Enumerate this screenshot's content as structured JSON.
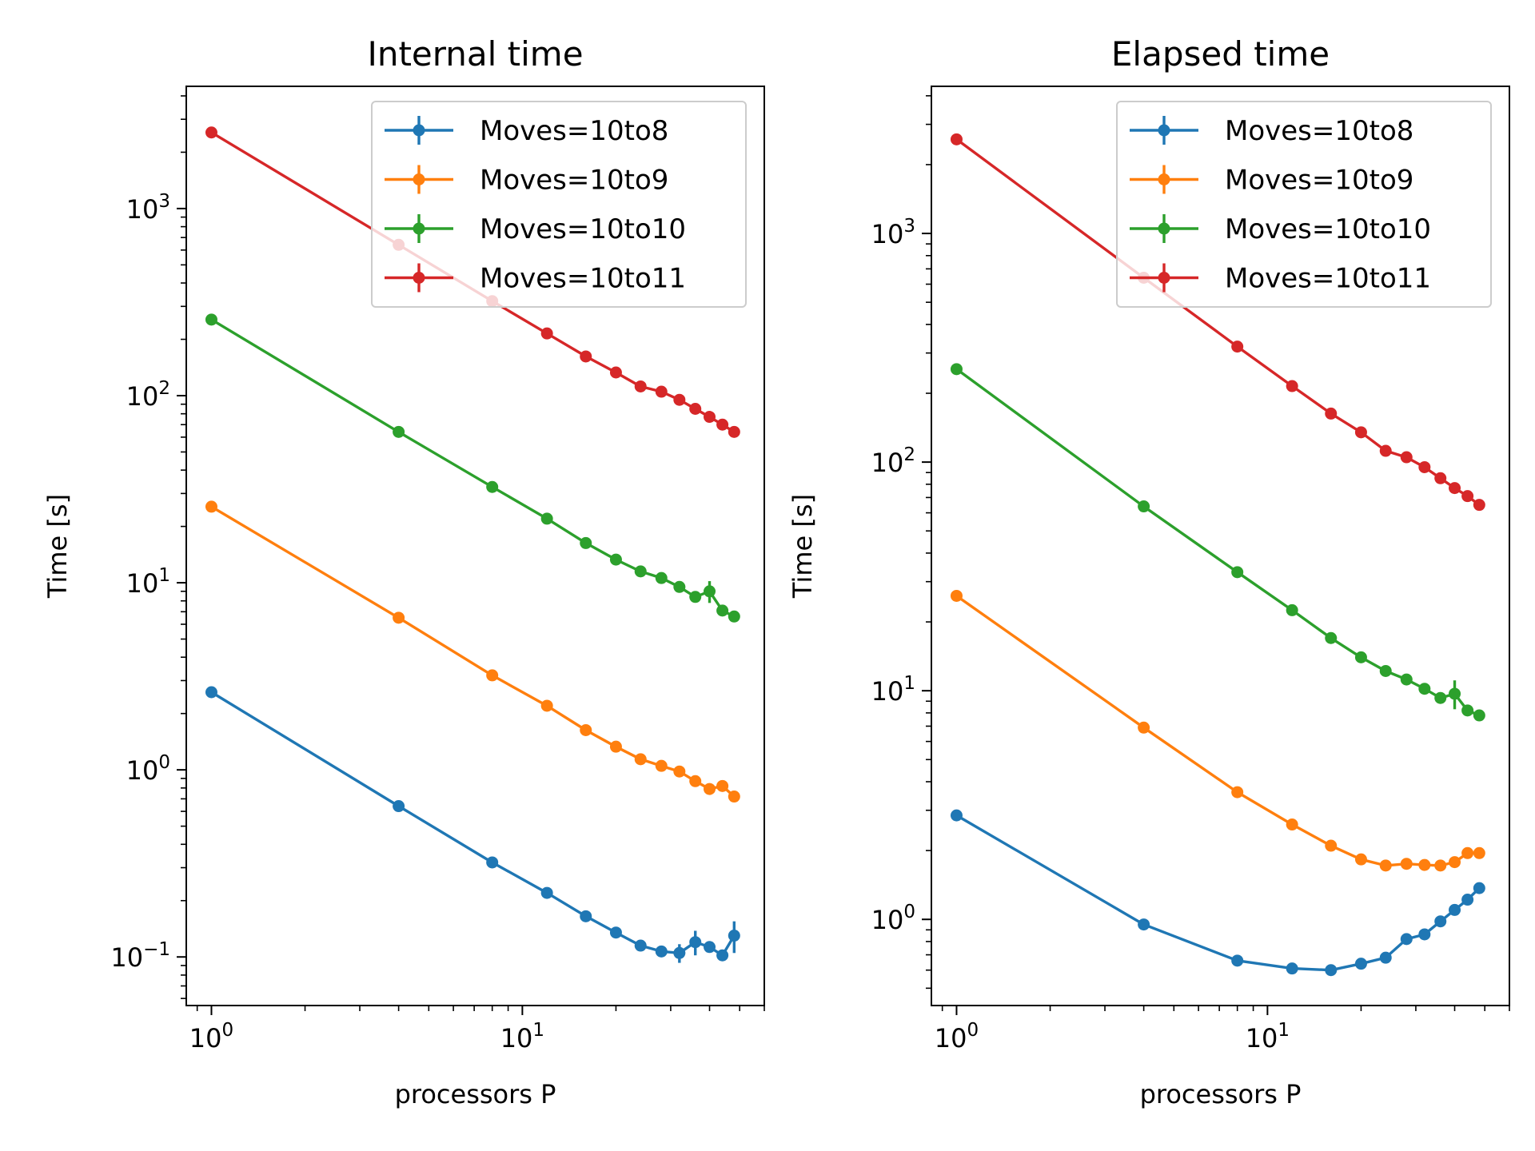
{
  "chart_data": [
    {
      "type": "line",
      "title": "Internal time",
      "xlabel": "processors P",
      "ylabel": "Time [s]",
      "xscale": "log",
      "yscale": "log",
      "xlim": [
        0.83,
        60
      ],
      "ylim": [
        0.055,
        4500
      ],
      "x_ticks": [
        {
          "value": 1,
          "base": "10",
          "exp": "0"
        },
        {
          "value": 10,
          "base": "10",
          "exp": "1"
        }
      ],
      "y_ticks": [
        {
          "value": 0.1,
          "base": "10",
          "exp": "−1"
        },
        {
          "value": 1,
          "base": "10",
          "exp": "0"
        },
        {
          "value": 10,
          "base": "10",
          "exp": "1"
        },
        {
          "value": 100,
          "base": "10",
          "exp": "2"
        },
        {
          "value": 1000,
          "base": "10",
          "exp": "3"
        }
      ],
      "grid": false,
      "legend_position": "top-right",
      "x": [
        1,
        4,
        8,
        12,
        16,
        20,
        24,
        28,
        32,
        36,
        40,
        44,
        48
      ],
      "series": [
        {
          "name": "Moves=10to8",
          "color": "#1f77b4",
          "values": [
            2.6,
            0.64,
            0.32,
            0.22,
            0.165,
            0.135,
            0.115,
            0.107,
            0.105,
            0.12,
            0.113,
            0.102,
            0.13
          ],
          "errors": [
            0,
            0,
            0,
            0,
            0,
            0,
            0,
            0,
            0.012,
            0.018,
            0,
            0,
            0.025
          ]
        },
        {
          "name": "Moves=10to9",
          "color": "#ff7f0e",
          "values": [
            25.5,
            6.5,
            3.2,
            2.2,
            1.63,
            1.33,
            1.14,
            1.05,
            0.98,
            0.87,
            0.79,
            0.82,
            0.72
          ],
          "errors": [
            0,
            0,
            0,
            0,
            0,
            0,
            0,
            0,
            0,
            0,
            0,
            0,
            0
          ]
        },
        {
          "name": "Moves=10to10",
          "color": "#2ca02c",
          "values": [
            255,
            64,
            32.5,
            22,
            16.3,
            13.3,
            11.5,
            10.6,
            9.5,
            8.4,
            9.0,
            7.1,
            6.6
          ],
          "errors": [
            0,
            0,
            0,
            0,
            0,
            0,
            0,
            0,
            0,
            0,
            1.2,
            0,
            0
          ]
        },
        {
          "name": "Moves=10to11",
          "color": "#d62728",
          "values": [
            2550,
            640,
            320,
            215,
            162,
            133,
            112,
            105,
            95,
            85,
            77,
            70,
            64
          ],
          "errors": [
            0,
            0,
            0,
            0,
            0,
            0,
            0,
            0,
            0,
            0,
            0,
            0,
            0
          ]
        }
      ]
    },
    {
      "type": "line",
      "title": "Elapsed time",
      "xlabel": "processors P",
      "ylabel": "Time [s]",
      "xscale": "log",
      "yscale": "log",
      "xlim": [
        0.83,
        60
      ],
      "ylim": [
        0.42,
        4400
      ],
      "x_ticks": [
        {
          "value": 1,
          "base": "10",
          "exp": "0"
        },
        {
          "value": 10,
          "base": "10",
          "exp": "1"
        }
      ],
      "y_ticks": [
        {
          "value": 1,
          "base": "10",
          "exp": "0"
        },
        {
          "value": 10,
          "base": "10",
          "exp": "1"
        },
        {
          "value": 100,
          "base": "10",
          "exp": "2"
        },
        {
          "value": 1000,
          "base": "10",
          "exp": "3"
        }
      ],
      "grid": false,
      "legend_position": "top-right",
      "x": [
        1,
        4,
        8,
        12,
        16,
        20,
        24,
        28,
        32,
        36,
        40,
        44,
        48
      ],
      "series": [
        {
          "name": "Moves=10to8",
          "color": "#1f77b4",
          "values": [
            2.85,
            0.95,
            0.66,
            0.61,
            0.6,
            0.64,
            0.68,
            0.82,
            0.86,
            0.98,
            1.1,
            1.22,
            1.37
          ],
          "errors": [
            0,
            0,
            0,
            0,
            0,
            0,
            0,
            0,
            0,
            0,
            0,
            0,
            0
          ]
        },
        {
          "name": "Moves=10to9",
          "color": "#ff7f0e",
          "values": [
            26,
            6.9,
            3.6,
            2.6,
            2.1,
            1.83,
            1.72,
            1.75,
            1.73,
            1.72,
            1.78,
            1.95,
            1.95
          ],
          "errors": [
            0,
            0,
            0,
            0,
            0,
            0,
            0,
            0,
            0,
            0,
            0,
            0,
            0
          ]
        },
        {
          "name": "Moves=10to10",
          "color": "#2ca02c",
          "values": [
            255,
            64,
            33,
            22.5,
            17,
            14,
            12.2,
            11.2,
            10.2,
            9.3,
            9.7,
            8.2,
            7.8
          ],
          "errors": [
            0,
            0,
            0,
            0,
            0,
            0,
            0,
            0,
            0,
            0,
            1.4,
            0,
            0
          ]
        },
        {
          "name": "Moves=10to11",
          "color": "#d62728",
          "values": [
            2580,
            640,
            320,
            215,
            163,
            135,
            112,
            105,
            95,
            85,
            77,
            71,
            65
          ],
          "errors": [
            0,
            0,
            0,
            0,
            0,
            0,
            0,
            0,
            0,
            0,
            0,
            0,
            0
          ]
        }
      ]
    }
  ]
}
